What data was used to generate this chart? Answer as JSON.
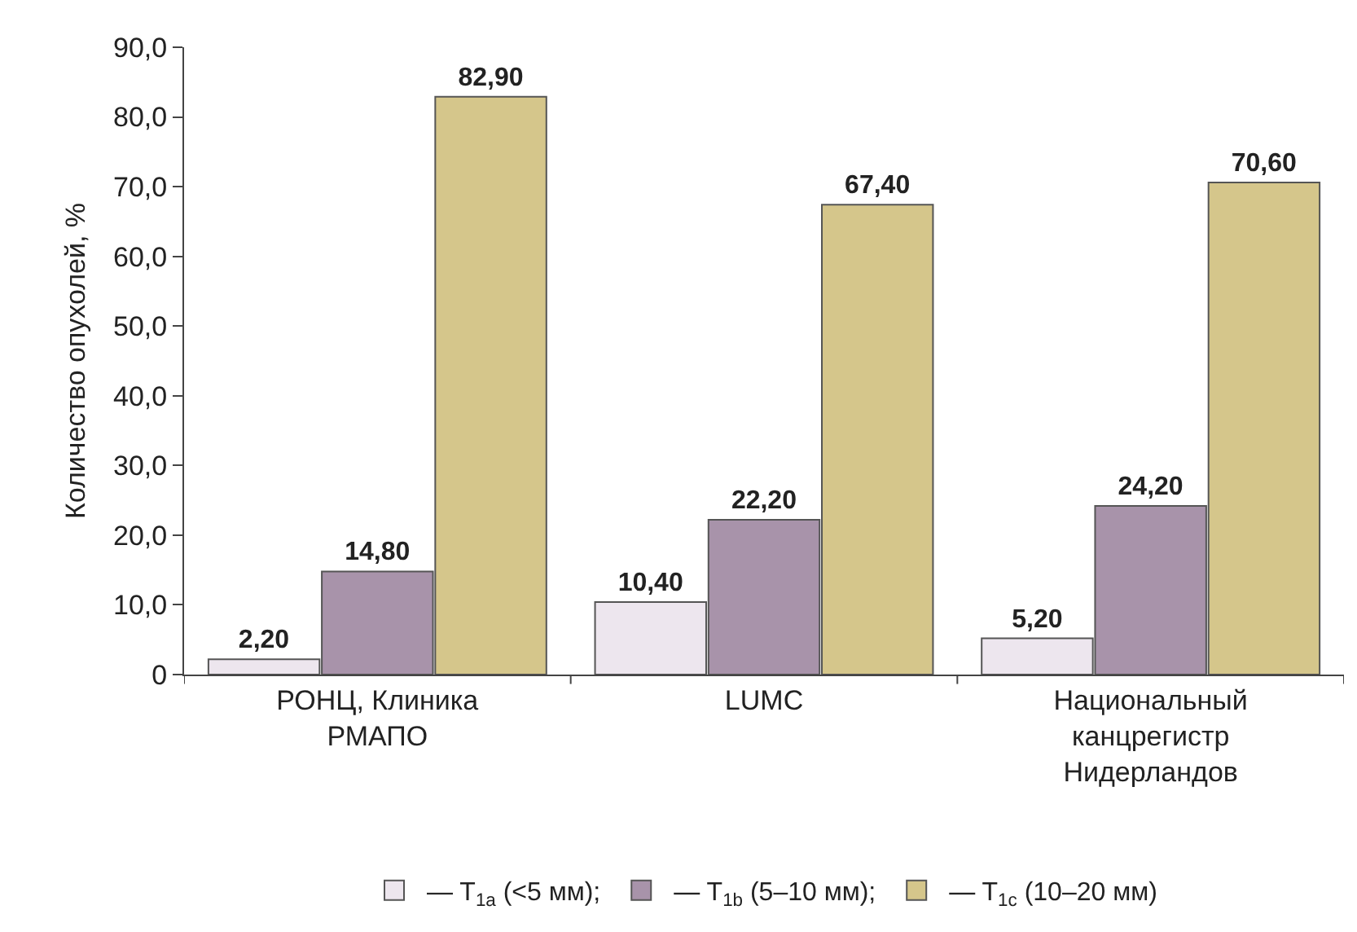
{
  "chart_data": {
    "type": "bar",
    "ylabel": "Количество опухолей, %",
    "categories": [
      "РОНЦ, Клиника\nРМАПО",
      "LUMC",
      "Национальный\nканцрегистр\nНидерландов"
    ],
    "series": [
      {
        "name": "— T$_{1a}$ (<5 мм);",
        "color": "#ede6ee",
        "values": [
          2.2,
          10.4,
          5.2
        ],
        "value_labels": [
          "2,20",
          "10,40",
          "5,20"
        ]
      },
      {
        "name": "— T$_{1b}$ (5–10 мм);",
        "color": "#a893aa",
        "values": [
          14.8,
          22.2,
          24.2
        ],
        "value_labels": [
          "14,80",
          "22,20",
          "24,20"
        ]
      },
      {
        "name": "— T$_{1c}$ (10–20 мм)",
        "color": "#d5c68b",
        "values": [
          82.9,
          67.4,
          70.6
        ],
        "value_labels": [
          "82,90",
          "67,40",
          "70,60"
        ]
      }
    ],
    "ylim": [
      0,
      90
    ],
    "yticks": [
      {
        "value": 0,
        "label": "0"
      },
      {
        "value": 10,
        "label": "10,0"
      },
      {
        "value": 20,
        "label": "20,0"
      },
      {
        "value": 30,
        "label": "30,0"
      },
      {
        "value": 40,
        "label": "40,0"
      },
      {
        "value": 50,
        "label": "50,0"
      },
      {
        "value": 60,
        "label": "60,0"
      },
      {
        "value": 70,
        "label": "70,0"
      },
      {
        "value": 80,
        "label": "80,0"
      },
      {
        "value": 90,
        "label": "90,0"
      }
    ],
    "grid": false,
    "legend": "bottom"
  }
}
